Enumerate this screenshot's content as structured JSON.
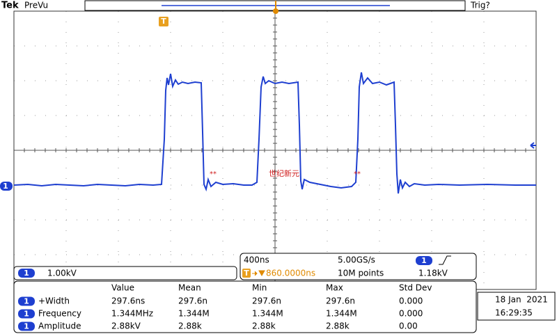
{
  "header": {
    "brand": "Tek",
    "status": "PreVu",
    "trigger_state": "Trig?"
  },
  "markers": {
    "trigger": "T",
    "channel": "1"
  },
  "watermark": {
    "left": "**",
    "center": "世纪新元",
    "right": "**"
  },
  "channel": {
    "number": "1",
    "scale": "1.00kV"
  },
  "acquisition": {
    "time_scale": "400ns",
    "sample_rate": "5.00GS/s",
    "trigger_channel": "1",
    "trigger_level": "1.18kV",
    "trigger_marker": "T",
    "position": "860.0000ns",
    "record_length": "10M points"
  },
  "measurements": {
    "columns": [
      "Value",
      "Mean",
      "Min",
      "Max",
      "Std Dev"
    ],
    "rows": [
      {
        "channel": "1",
        "name": "+Width",
        "cells": [
          "297.6ns",
          "297.6n",
          "297.6n",
          "297.6n",
          "0.000"
        ]
      },
      {
        "channel": "1",
        "name": "Frequency",
        "cells": [
          "1.344MHz",
          "1.344M",
          "1.344M",
          "1.344M",
          "0.000"
        ]
      },
      {
        "channel": "1",
        "name": "Amplitude",
        "cells": [
          "2.88kV",
          "2.88k",
          "2.88k",
          "2.88k",
          "0.00"
        ]
      }
    ]
  },
  "datetime": {
    "date": "18 Jan  2021",
    "time": "16:29:35"
  }
}
